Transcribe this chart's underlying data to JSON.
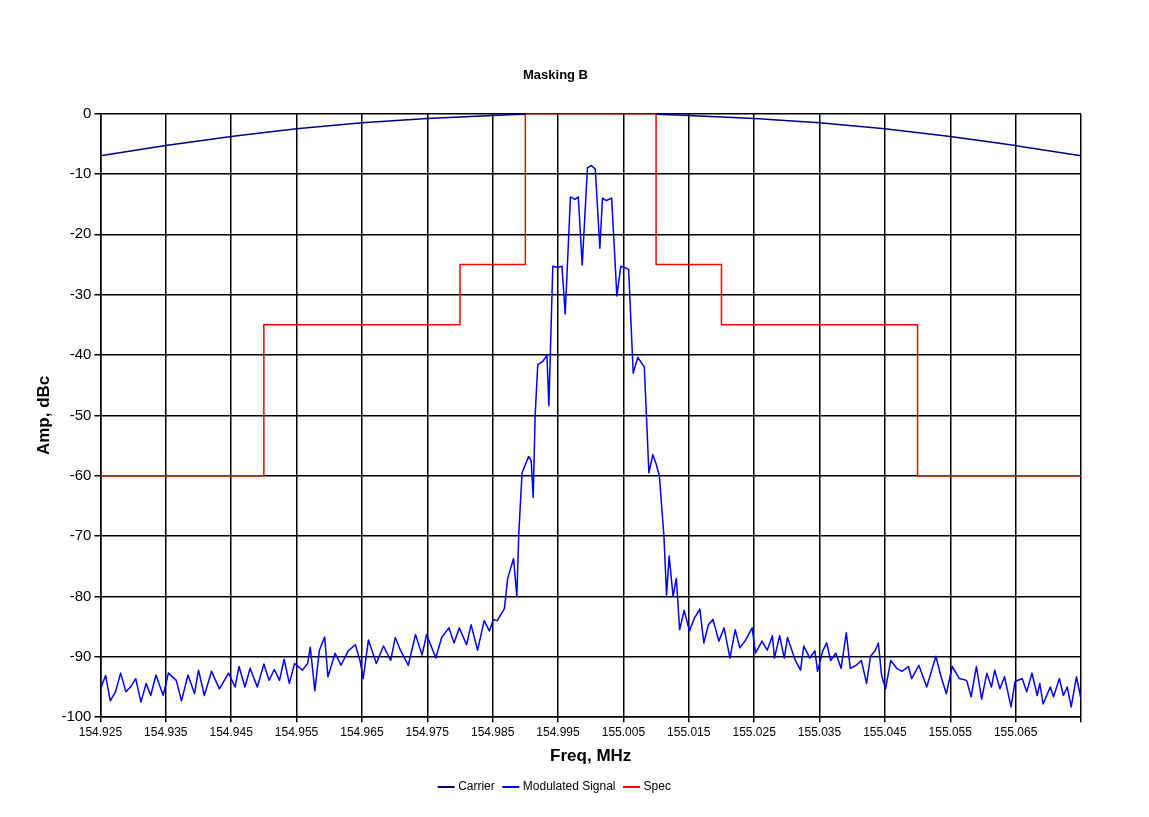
{
  "chart_data": {
    "type": "line",
    "title": "Masking B",
    "xlabel": "Freq, MHz",
    "ylabel": "Amp, dBc",
    "xlim": [
      154.925,
      155.075
    ],
    "xticks": [
      154.925,
      154.935,
      154.945,
      154.955,
      154.965,
      154.975,
      154.985,
      154.995,
      155.005,
      155.015,
      155.025,
      155.035,
      155.045,
      155.055,
      155.065,
      {
        "value": 155.075,
        "label": null
      }
    ],
    "ylim": [
      -100,
      0
    ],
    "yticks": [
      -100,
      -90,
      -80,
      -70,
      -60,
      -50,
      -40,
      -30,
      -20,
      -10,
      0
    ],
    "grid": true,
    "legend": "bottom",
    "marker": "none",
    "line_style": "solid",
    "series": [
      {
        "name": "Carrier",
        "color": "#000080",
        "x": [
          154.925,
          154.935,
          154.945,
          154.955,
          154.965,
          154.975,
          154.985,
          154.99,
          155.0,
          155.01,
          155.015,
          155.025,
          155.035,
          155.045,
          155.055,
          155.065,
          155.075
        ],
        "values": [
          -7,
          -5.3,
          -3.8,
          -2.5,
          -1.5,
          -0.8,
          -0.3,
          -0.1,
          null,
          -0.1,
          -0.3,
          -0.8,
          -1.5,
          -2.5,
          -3.8,
          -5.3,
          -7
        ]
      },
      {
        "name": "Modulated Signal",
        "color": "#0000ff",
        "x": [
          154.925,
          154.9258,
          154.9265,
          154.9273,
          154.9281,
          154.9289,
          154.9296,
          154.9304,
          154.9312,
          154.932,
          154.9327,
          154.9335,
          154.9346,
          154.9354,
          154.9366,
          154.9374,
          154.9384,
          154.9394,
          154.94,
          154.9409,
          154.942,
          154.9432,
          154.9446,
          154.9456,
          154.9462,
          154.9471,
          154.9479,
          154.949,
          154.95,
          154.9508,
          154.9516,
          154.9524,
          154.9531,
          154.9539,
          154.9547,
          154.9559,
          154.9567,
          154.9571,
          154.9578,
          154.9585,
          154.9593,
          154.9598,
          154.9609,
          154.9618,
          154.9629,
          154.964,
          154.9647,
          154.9652,
          154.966,
          154.9672,
          154.9683,
          154.9694,
          154.9701,
          154.9709,
          154.9721,
          154.9732,
          154.9742,
          154.9749,
          154.9763,
          154.9772,
          154.9783,
          154.9791,
          154.9799,
          154.981,
          154.9817,
          154.9827,
          154.9837,
          154.9845,
          154.9851,
          154.9857,
          154.9868,
          154.9873,
          154.9882,
          154.9887,
          154.989,
          154.9895,
          154.9905,
          154.9909,
          154.9912,
          154.9915,
          154.9919,
          154.9927,
          154.9933,
          154.9936,
          154.9942,
          154.995,
          154.9956,
          154.9961,
          154.9969,
          154.9976,
          154.9981,
          154.9987,
          154.9995,
          155.0001,
          155.0007,
          155.0014,
          155.0018,
          155.0024,
          155.0032,
          155.004,
          155.0046,
          155.0052,
          155.0058,
          155.0065,
          155.0072,
          155.0082,
          155.0089,
          155.0095,
          155.01,
          155.0105,
          155.0112,
          155.0116,
          155.012,
          155.0126,
          155.0131,
          155.0136,
          155.0143,
          155.0151,
          155.0159,
          155.0167,
          155.0173,
          155.018,
          155.0187,
          155.0196,
          155.0204,
          155.0213,
          155.0221,
          155.0228,
          155.0236,
          155.0247,
          155.0252,
          155.0262,
          155.027,
          155.0278,
          155.0281,
          155.0289,
          155.0296,
          155.0301,
          155.0313,
          155.0321,
          155.0326,
          155.0335,
          155.0343,
          155.0347,
          155.0355,
          155.0361,
          155.0367,
          155.0375,
          155.0383,
          155.0391,
          155.0397,
          155.0406,
          155.0414,
          155.0422,
          155.0428,
          155.0435,
          155.044,
          155.0445,
          155.0451,
          155.0459,
          155.0468,
          155.0476,
          155.0486,
          155.0491,
          155.0502,
          155.0514,
          155.0528,
          155.0536,
          155.0544,
          155.0553,
          155.0564,
          155.0575,
          155.0582,
          155.059,
          155.0598,
          155.0606,
          155.0613,
          155.0618,
          155.0626,
          155.0633,
          155.0643,
          155.0649,
          155.066,
          155.0667,
          155.0675,
          155.0683,
          155.0687,
          155.0692,
          155.0703,
          155.0708,
          155.0717,
          155.0723,
          155.0729,
          155.0735,
          155.0743,
          155.075
        ],
        "values": [
          -95.3,
          -93.1,
          -97.3,
          -95.8,
          -92.7,
          -95.8,
          -95,
          -93.6,
          -97.5,
          -94.4,
          -96.4,
          -93,
          -96.4,
          -92.7,
          -93.9,
          -97.3,
          -93,
          -96.1,
          -92.2,
          -96.4,
          -92.4,
          -95.3,
          -92.7,
          -95,
          -91.6,
          -95,
          -91.9,
          -95,
          -91.2,
          -93.9,
          -92.1,
          -93.9,
          -90.4,
          -94.4,
          -91.1,
          -92.2,
          -91.1,
          -88.4,
          -95.6,
          -88.9,
          -86.7,
          -93.3,
          -89.4,
          -91.4,
          -89,
          -88,
          -90.6,
          -93.6,
          -87.2,
          -91.1,
          -88.2,
          -90.6,
          -86.8,
          -88.9,
          -91.4,
          -86.3,
          -89.7,
          -86.3,
          -90.2,
          -86.8,
          -85.2,
          -87.7,
          -85.2,
          -88,
          -84.7,
          -88.9,
          -84,
          -85.7,
          -83.8,
          -84,
          -82,
          -77,
          -73.7,
          -80,
          -69.5,
          -59.5,
          -56.8,
          -57.5,
          -63.6,
          -50,
          -41.6,
          -41,
          -40,
          -48.4,
          -25.3,
          -25.5,
          -25.3,
          -33.2,
          -13.8,
          -14.2,
          -13.8,
          -25.1,
          -9,
          -8.6,
          -9.2,
          -22.3,
          -14,
          -14.4,
          -14,
          -30.2,
          -25.3,
          -25.5,
          -25.8,
          -43,
          -40.4,
          -42,
          -59.5,
          -56.5,
          -58,
          -60,
          -70,
          -79.8,
          -73.3,
          -80,
          -77,
          -85.5,
          -82.3,
          -85.7,
          -83.5,
          -82.1,
          -87.7,
          -84.7,
          -83.8,
          -87.4,
          -85.2,
          -90.2,
          -85.5,
          -88.5,
          -87.4,
          -85.2,
          -89.4,
          -87.4,
          -88.9,
          -86.5,
          -90.2,
          -86.5,
          -90.2,
          -86.8,
          -90.6,
          -92.2,
          -88.2,
          -90.2,
          -89,
          -92.4,
          -89,
          -87.7,
          -90.6,
          -89.4,
          -91.9,
          -86,
          -91.9,
          -91.4,
          -90.6,
          -94.4,
          -89.9,
          -89,
          -87.7,
          -93.1,
          -95.3,
          -90.6,
          -91.9,
          -92.4,
          -91.6,
          -93.6,
          -91.4,
          -95,
          -89.9,
          -93.3,
          -96.1,
          -91.6,
          -93.6,
          -93.9,
          -96.6,
          -91.6,
          -97,
          -92.7,
          -95,
          -92.2,
          -95.3,
          -93.3,
          -98.3,
          -94.1,
          -93.6,
          -95.8,
          -92.7,
          -96.4,
          -94.4,
          -97.8,
          -95,
          -96.6,
          -93.6,
          -96.4,
          -95,
          -98.3,
          -93.3,
          -97
        ]
      },
      {
        "name": "Spec",
        "color": "#ff0000",
        "x": [
          154.925,
          154.95,
          154.95,
          154.98,
          154.98,
          154.99,
          154.99,
          155.01,
          155.01,
          155.02,
          155.02,
          155.05,
          155.05,
          155.075
        ],
        "values": [
          -60,
          -60,
          -35,
          -35,
          -25,
          -25,
          0,
          0,
          -25,
          -25,
          -35,
          -35,
          -60,
          -60
        ]
      }
    ]
  }
}
